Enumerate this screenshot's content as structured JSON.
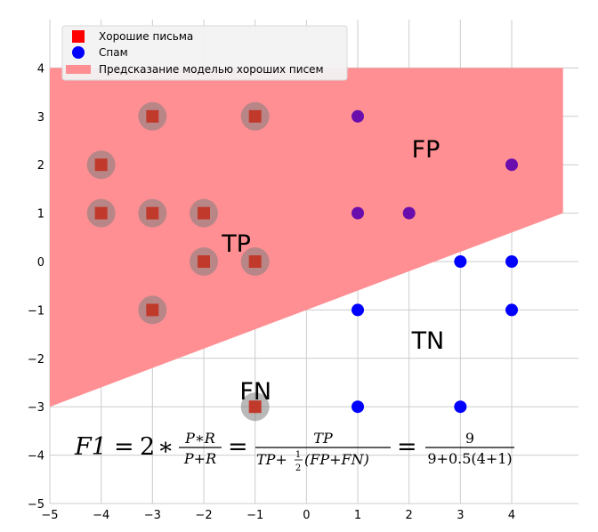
{
  "chart_data": {
    "type": "scatter",
    "xlim": [
      -5,
      5.3
    ],
    "ylim": [
      -5,
      5.0
    ],
    "xticks": [
      -5,
      -4,
      -3,
      -2,
      -1,
      0,
      1,
      2,
      3,
      4
    ],
    "yticks": [
      -5,
      -4,
      -3,
      -2,
      -1,
      0,
      1,
      2,
      3,
      4
    ],
    "grid": true,
    "legend_position": "top-left",
    "legend": [
      {
        "label": "Хорошие письма",
        "marker": "square",
        "color": "#ff0000"
      },
      {
        "label": "Спам",
        "marker": "circle",
        "color": "#0000ff"
      },
      {
        "label": "Предсказание моделью хороших писем",
        "marker": "patch",
        "color": "#ff8f93"
      }
    ],
    "prediction_region": [
      [
        -5,
        4
      ],
      [
        5,
        4
      ],
      [
        5,
        1
      ],
      [
        -5,
        -3
      ]
    ],
    "good_letters": {
      "name": "Хорошие письма",
      "color": "#c0392b",
      "points": [
        [
          -3,
          3
        ],
        [
          -1,
          3
        ],
        [
          -4,
          2
        ],
        [
          -4,
          1
        ],
        [
          -3,
          1
        ],
        [
          -2,
          1
        ],
        [
          -2,
          0
        ],
        [
          -1,
          0
        ],
        [
          -3,
          -1
        ],
        [
          -1,
          -3
        ]
      ]
    },
    "spam": {
      "name": "Спам",
      "inside_color": "#6a0dad",
      "outside_color": "#0000ff",
      "points": [
        [
          1,
          3
        ],
        [
          4,
          2
        ],
        [
          1,
          1
        ],
        [
          2,
          1
        ],
        [
          3,
          0
        ],
        [
          4,
          0
        ],
        [
          1,
          -1
        ],
        [
          4,
          -1
        ],
        [
          1,
          -3
        ],
        [
          3,
          -3
        ]
      ]
    },
    "highlight_circles": [
      [
        -3,
        3
      ],
      [
        -1,
        3
      ],
      [
        -4,
        2
      ],
      [
        -4,
        1
      ],
      [
        -3,
        1
      ],
      [
        -2,
        1
      ],
      [
        -2,
        0
      ],
      [
        -1,
        0
      ],
      [
        -3,
        -1
      ],
      [
        -1,
        -3
      ]
    ],
    "region_labels": [
      {
        "text": "FP",
        "x": 2.05,
        "y": 2.15
      },
      {
        "text": "TP",
        "x": -1.65,
        "y": 0.2
      },
      {
        "text": "TN",
        "x": 2.05,
        "y": -1.8
      },
      {
        "text": "FN",
        "x": -1.3,
        "y": -2.85
      }
    ],
    "formula": {
      "f1": "F1",
      "eq": "=",
      "two": "2",
      "star": "∗",
      "frac1_num": "P∗R",
      "frac1_den": "P+R",
      "frac2_num": "TP",
      "frac2_den_a": "TP+",
      "half_num": "1",
      "half_den": "2",
      "frac2_den_b": "(FP+FN)",
      "frac3_num": "9",
      "frac3_den": "9+0.5(4+1)"
    }
  }
}
